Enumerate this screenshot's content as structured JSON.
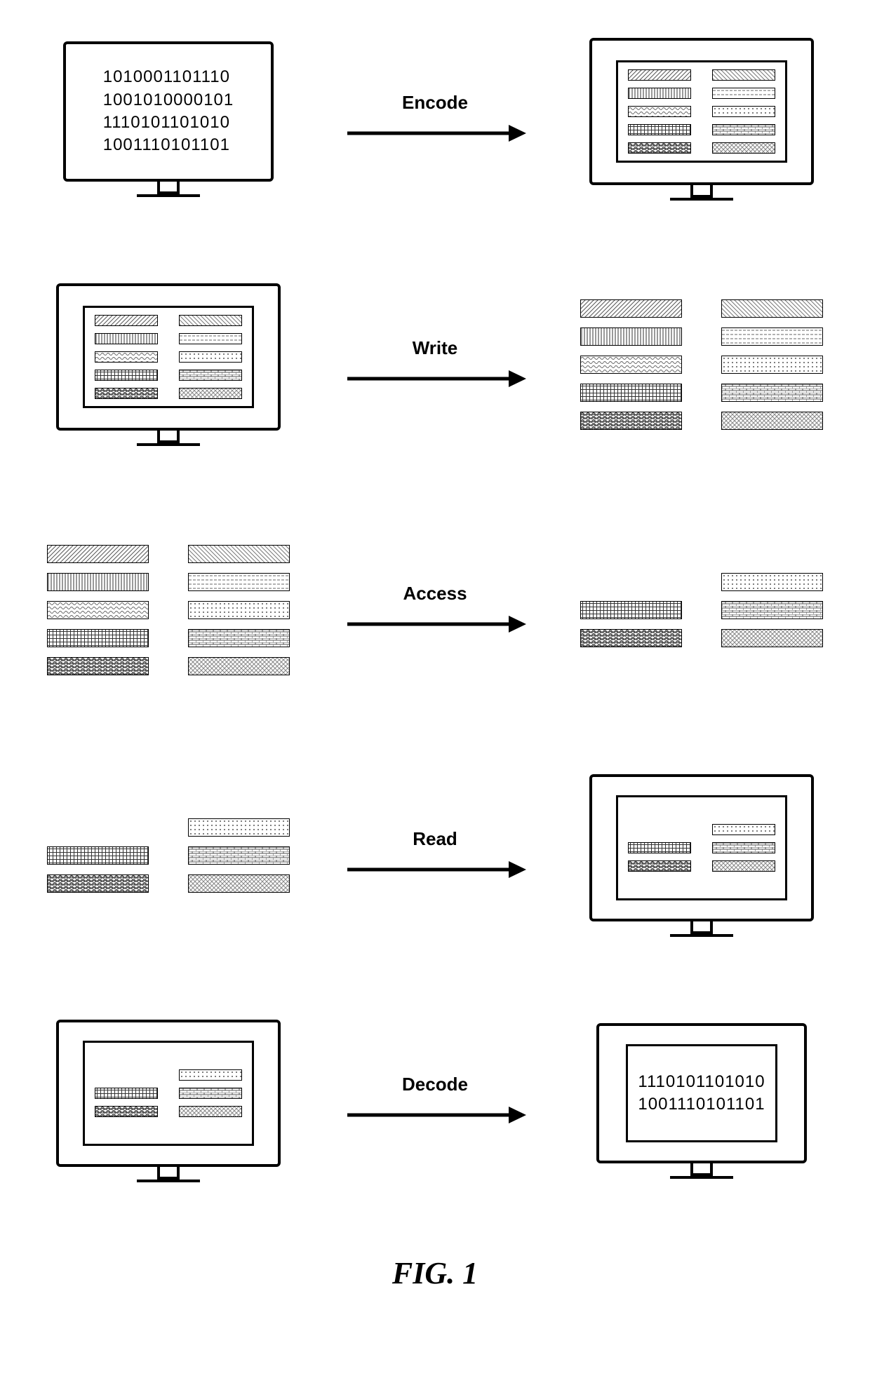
{
  "operations": [
    "Encode",
    "Write",
    "Access",
    "Read",
    "Decode"
  ],
  "binary_in": [
    "1010001101110",
    "1001010000101",
    "1110101101010",
    "1001110101101"
  ],
  "binary_out": [
    "1110101101010",
    "1001110101101"
  ],
  "figure_caption": "FIG. 1",
  "patterns": {
    "p0": "diag1",
    "p1": "diag2",
    "p2": "vstripe",
    "p3": "hdash",
    "p4": "wavey",
    "p5": "dots",
    "p6": "cross",
    "p7": "brick",
    "p8": "wave2",
    "p9": "xhatch"
  },
  "pattern_fills": {
    "diag1": "#cfcfcf",
    "diag2": "#d8d8d8",
    "vstripe": "#e8e8e8",
    "hdash": "#f0f0f0",
    "wavey": "#d0d0d0",
    "dots": "#e0e0e0",
    "cross": "#b8b8b8",
    "brick": "#c8c8c8",
    "wave2": "#a8a8a8",
    "xhatch": "#d4d4d4"
  },
  "full_set": [
    "p0",
    "p1",
    "p2",
    "p3",
    "p4",
    "p5",
    "p6",
    "p7",
    "p8",
    "p9"
  ],
  "access_out": [
    "",
    "p5",
    "p6",
    "p7",
    "p8",
    "p9"
  ],
  "read_in": [
    "",
    "p5",
    "p6",
    "p7",
    "p8",
    "p9"
  ],
  "styling": {
    "monitor_border": "#000000",
    "background": "#ffffff",
    "label_fontsize": 26,
    "label_fontweight": "bold",
    "caption_fontsize": 44,
    "arrow_color": "#000000",
    "bar_border": "#000000"
  }
}
